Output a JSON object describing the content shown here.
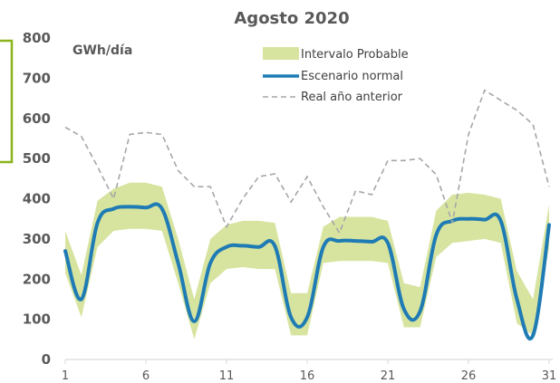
{
  "chart_data": {
    "type": "line",
    "title": "Agosto 2020",
    "unit_label": "GWh/día",
    "xlabel": "",
    "ylabel": "",
    "xlim": [
      1,
      31
    ],
    "ylim": [
      0,
      800
    ],
    "x_ticks": [
      1,
      6,
      11,
      16,
      21,
      26,
      31
    ],
    "y_ticks": [
      0,
      100,
      200,
      300,
      400,
      500,
      600,
      700,
      800
    ],
    "grid": false,
    "legend_position": "top-right",
    "x": [
      1,
      2,
      3,
      4,
      5,
      6,
      7,
      8,
      9,
      10,
      11,
      12,
      13,
      14,
      15,
      16,
      17,
      18,
      19,
      20,
      21,
      22,
      23,
      24,
      25,
      26,
      27,
      28,
      29,
      30,
      31
    ],
    "series": [
      {
        "name": "Intervalo Probable",
        "kind": "band",
        "color": "#d7e4a0",
        "lower": [
          215,
          105,
          280,
          320,
          325,
          325,
          320,
          190,
          50,
          190,
          225,
          230,
          225,
          225,
          60,
          60,
          240,
          245,
          245,
          245,
          240,
          80,
          80,
          255,
          290,
          295,
          300,
          290,
          90,
          60,
          280
        ],
        "upper": [
          320,
          210,
          395,
          425,
          440,
          440,
          430,
          300,
          150,
          300,
          335,
          345,
          345,
          340,
          165,
          165,
          330,
          355,
          355,
          355,
          345,
          190,
          180,
          370,
          410,
          415,
          410,
          400,
          220,
          150,
          385
        ]
      },
      {
        "name": "Escenario normal",
        "kind": "line",
        "color": "#1f7bb4",
        "values": [
          270,
          150,
          340,
          375,
          380,
          378,
          375,
          240,
          95,
          240,
          280,
          283,
          280,
          282,
          105,
          105,
          280,
          295,
          295,
          293,
          290,
          125,
          120,
          310,
          345,
          350,
          348,
          345,
          150,
          60,
          335
        ]
      },
      {
        "name": "Real año anterior",
        "kind": "dashed-line",
        "color": "#a6a6a6",
        "values": [
          578,
          555,
          480,
          400,
          560,
          565,
          560,
          470,
          430,
          430,
          330,
          400,
          455,
          462,
          392,
          455,
          380,
          315,
          420,
          410,
          495,
          495,
          500,
          460,
          340,
          560,
          670,
          645,
          620,
          585,
          430
        ]
      }
    ]
  },
  "colors": {
    "axis_line": "#d9d9d9",
    "tick_text": "#595959",
    "title_text": "#595959",
    "left_edge_box": "#8cb31b"
  }
}
